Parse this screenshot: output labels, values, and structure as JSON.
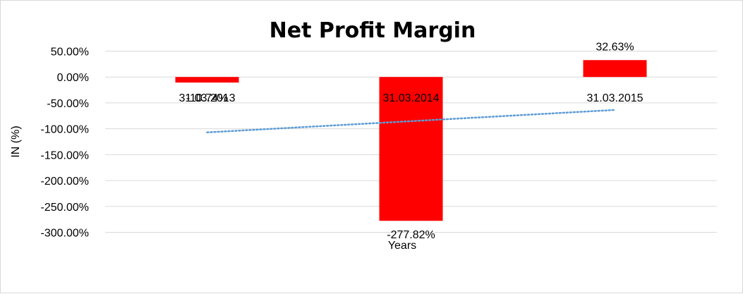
{
  "chart_data": {
    "type": "bar",
    "title": "Net Profit Margin",
    "xlabel": "Years",
    "ylabel": "IN (%)",
    "categories": [
      "31.03.2013",
      "31.03.2014",
      "31.03.2015"
    ],
    "series": [
      {
        "values": [
          -10.74,
          -277.82,
          32.63
        ],
        "data_labels": [
          "-10.74%",
          "-277.82%",
          "32.63%"
        ],
        "color": "#ff0000"
      }
    ],
    "ylim": [
      -300,
      50
    ],
    "yticks": [
      50,
      0,
      -50,
      -100,
      -150,
      -200,
      -250,
      -300
    ],
    "ytick_labels": [
      "50.00%",
      "0.00%",
      "-50.00%",
      "-100.00%",
      "-150.00%",
      "-200.00%",
      "-250.00%",
      "-300.00%"
    ],
    "trendline": {
      "type": "linear",
      "style": "dotted",
      "color": "#5b9bd5"
    },
    "grid": true,
    "gridline_color": "#d9d9d9"
  }
}
